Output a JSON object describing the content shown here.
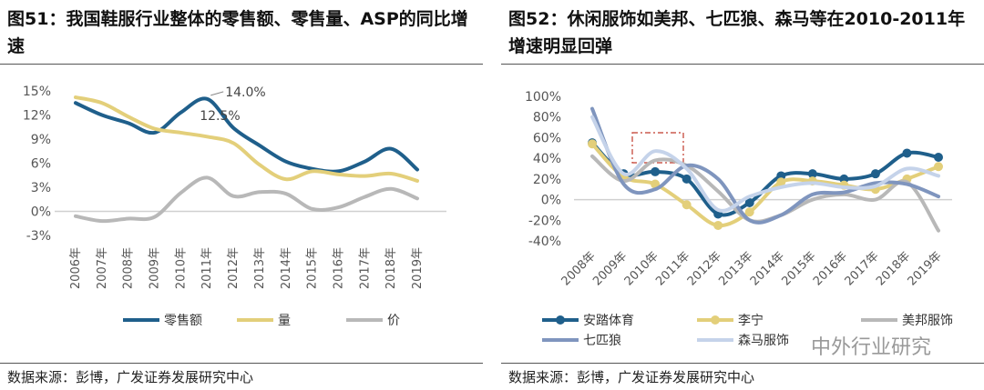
{
  "chart_data": [
    {
      "type": "line",
      "title": "图51：我国鞋服行业整体的零售额、零售量、ASP的同比增速",
      "categories": [
        "2006年",
        "2007年",
        "2008年",
        "2009年",
        "2010年",
        "2011年",
        "2012年",
        "2013年",
        "2014年",
        "2015年",
        "2016年",
        "2017年",
        "2018年",
        "2019年"
      ],
      "ylim": [
        -3,
        15
      ],
      "yticks": [
        "15%",
        "12%",
        "9%",
        "6%",
        "3%",
        "0%",
        "-3%"
      ],
      "ytick_values": [
        15,
        12,
        9,
        6,
        3,
        0,
        -3
      ],
      "series": [
        {
          "name": "零售额",
          "color": "#1f5f8b",
          "values": [
            13.5,
            12.0,
            11.0,
            9.8,
            12.3,
            14.0,
            10.4,
            8.2,
            6.2,
            5.3,
            5.0,
            6.2,
            7.8,
            5.2
          ]
        },
        {
          "name": "量",
          "color": "#e3cf7a",
          "values": [
            14.2,
            13.5,
            11.8,
            10.3,
            9.8,
            9.3,
            8.5,
            5.8,
            4.0,
            5.0,
            4.6,
            4.4,
            4.7,
            3.8
          ]
        },
        {
          "name": "价",
          "color": "#b8b8b8",
          "values": [
            -0.6,
            -1.2,
            -0.9,
            -0.7,
            2.3,
            4.2,
            1.9,
            2.4,
            2.2,
            0.3,
            0.5,
            1.8,
            2.8,
            1.6
          ]
        }
      ],
      "annotations": [
        "14.0%",
        "12.5%"
      ],
      "legend": "bottom",
      "grid": false,
      "source": "数据来源：彭博，广发证券发展研究中心"
    },
    {
      "type": "line",
      "title": "图52：休闲服饰如美邦、七匹狼、森马等在2010-2011年增速明显回弹",
      "categories": [
        "2008年",
        "2009年",
        "2010年",
        "2011年",
        "2012年",
        "2013年",
        "2014年",
        "2015年",
        "2016年",
        "2017年",
        "2018年",
        "2019年"
      ],
      "ylim": [
        -40,
        100
      ],
      "yticks": [
        "100%",
        "80%",
        "60%",
        "40%",
        "20%",
        "0%",
        "-20%",
        "-40%"
      ],
      "ytick_values": [
        100,
        80,
        60,
        40,
        20,
        0,
        -20,
        -40
      ],
      "series": [
        {
          "name": "安踏体育",
          "color": "#1f5f8b",
          "markers": true,
          "values": [
            55,
            25,
            27,
            20,
            -14,
            -3,
            23,
            25,
            20,
            25,
            45,
            41
          ]
        },
        {
          "name": "李宁",
          "color": "#e3cf7a",
          "markers": true,
          "values": [
            54,
            22,
            15,
            -5,
            -25,
            -12,
            17,
            18,
            14,
            10,
            20,
            32
          ]
        },
        {
          "name": "美邦服饰",
          "color": "#b8b8b8",
          "values": [
            42,
            18,
            38,
            33,
            8,
            -20,
            -15,
            0,
            5,
            0,
            17,
            -30
          ]
        },
        {
          "name": "七匹狼",
          "color": "#7f95be",
          "values": [
            88,
            15,
            10,
            33,
            20,
            -20,
            -15,
            5,
            7,
            16,
            15,
            3
          ]
        },
        {
          "name": "森马服饰",
          "color": "#c5d3ea",
          "values": [
            80,
            25,
            47,
            30,
            -10,
            3,
            12,
            16,
            12,
            13,
            30,
            23
          ]
        }
      ],
      "legend": "bottom",
      "grid": false,
      "source": "数据来源：彭博，广发证券发展研究中心"
    }
  ],
  "watermark": "中外行业研究"
}
